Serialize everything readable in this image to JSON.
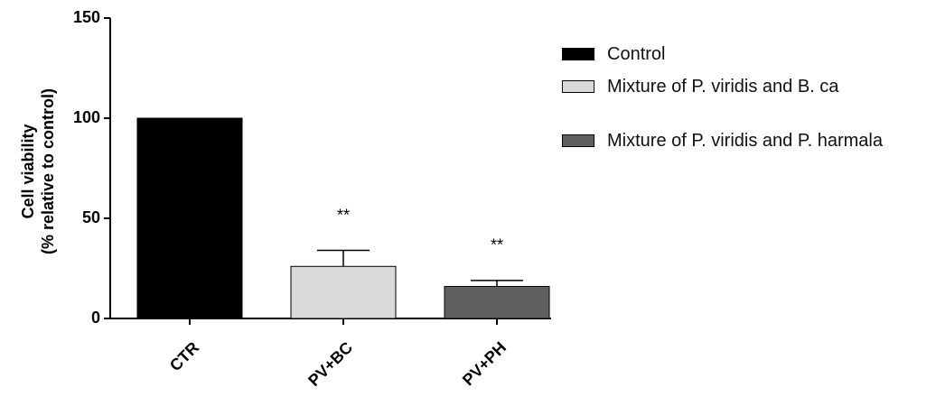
{
  "chart_data": {
    "type": "bar",
    "ylabel": [
      "Cell viability",
      "(% relative to control)"
    ],
    "categories": [
      "CTR",
      "PV+BC",
      "PV+PH"
    ],
    "values": [
      100,
      26,
      16
    ],
    "errors": [
      0,
      8,
      3
    ],
    "colors": [
      "#000000",
      "#d9d9d9",
      "#5f5f5f"
    ],
    "annotations": [
      null,
      "**",
      "**"
    ],
    "legend_labels": [
      "Control",
      "Mixture of P. viridis and B. ca",
      "Mixture of P. viridis and P. harmala"
    ],
    "ylim": [
      0,
      150
    ],
    "yticks": [
      0,
      50,
      100,
      150
    ],
    "grid": false
  }
}
